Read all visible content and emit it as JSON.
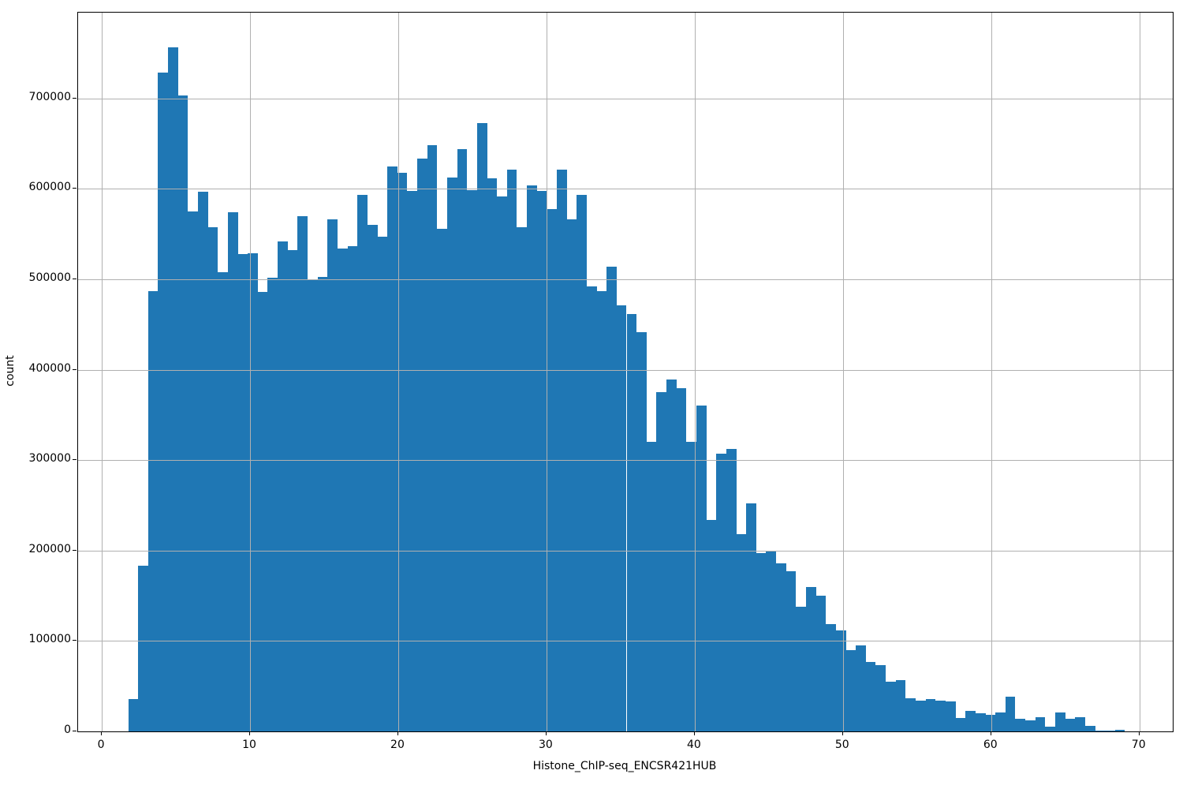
{
  "chart_data": {
    "type": "histogram",
    "title": "",
    "xlabel": "Histone_ChIP-seq_ENCSR421HUB",
    "ylabel": "count",
    "bar_color": "#1f77b4",
    "grid_color": "#b0b0b0",
    "grid": true,
    "legend": "none",
    "bin_start": 1.78,
    "bin_width": 0.6725,
    "xlim": [
      -1.6,
      72.25
    ],
    "ylim": [
      0,
      795000
    ],
    "x_ticks": [
      0,
      10,
      20,
      30,
      40,
      50,
      60,
      70
    ],
    "y_ticks": [
      0,
      100000,
      200000,
      300000,
      400000,
      500000,
      600000,
      700000
    ],
    "counts": [
      36000,
      183000,
      487000,
      729000,
      757000,
      703000,
      575000,
      597000,
      558000,
      508000,
      574000,
      528000,
      529000,
      486000,
      502000,
      542000,
      532000,
      570000,
      499000,
      503000,
      566000,
      534000,
      537000,
      593000,
      560000,
      547000,
      625000,
      618000,
      598000,
      634000,
      648000,
      556000,
      613000,
      644000,
      599000,
      673000,
      612000,
      592000,
      621000,
      558000,
      604000,
      598000,
      578000,
      621000,
      566000,
      593000,
      492000,
      487000,
      514000,
      471000,
      462000,
      442000,
      320000,
      375000,
      389000,
      380000,
      320000,
      360000,
      234000,
      307000,
      312000,
      218000,
      252000,
      197000,
      199000,
      186000,
      177000,
      138000,
      160000,
      150000,
      119000,
      112000,
      90000,
      95000,
      77000,
      73000,
      55000,
      57000,
      37000,
      34000,
      36000,
      34000,
      33000,
      15000,
      23000,
      20000,
      18000,
      21000,
      38000,
      14000,
      12000,
      16000,
      5000,
      21000,
      14000,
      16000,
      6000,
      1000,
      1000,
      2000
    ]
  }
}
